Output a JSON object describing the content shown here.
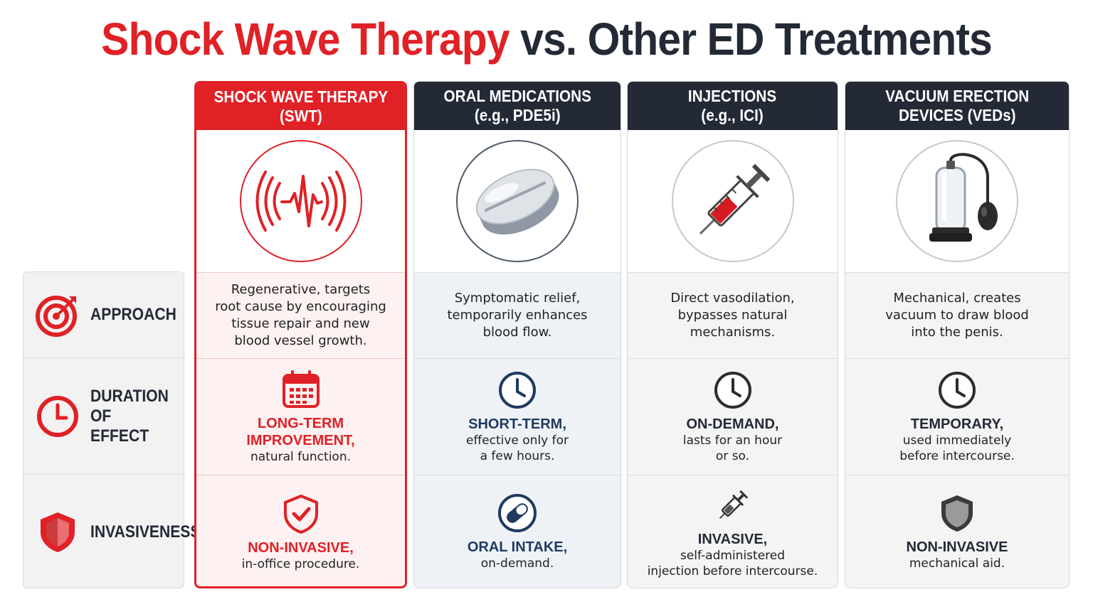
{
  "title": {
    "part1": "Shock Wave Therapy",
    "part2": "vs. Other ED Treatments"
  },
  "colors": {
    "accent_red": "#e02126",
    "dark_navy": "#232a36",
    "oral_blue": "#1f3a5f"
  },
  "rows": [
    {
      "label": "APPROACH",
      "icon": "target-icon"
    },
    {
      "label": "DURATION\nOF EFFECT",
      "icon": "clock-icon"
    },
    {
      "label": "INVASIVENESS",
      "icon": "shield-icon"
    }
  ],
  "columns": [
    {
      "header": "SHOCK WAVE THERAPY\n(SWT)",
      "image_icon": "shockwave-icon",
      "approach": "Regenerative, targets\nroot cause by encouraging\ntissue repair and new\nblood vessel growth.",
      "duration_icon": "calendar-icon",
      "duration_strong": "LONG-TERM\nIMPROVEMENT,",
      "duration_sub": "natural function.",
      "invasive_icon": "shield-check-icon",
      "invasive_strong": "NON-INVASIVE,",
      "invasive_sub": "in-office procedure."
    },
    {
      "header": "ORAL MEDICATIONS\n(e.g., PDE5i)",
      "image_icon": "pill-icon",
      "approach": "Symptomatic relief,\ntemporarily enhances\nblood flow.",
      "duration_icon": "clock-icon",
      "duration_strong": "SHORT-TERM,",
      "duration_sub": "effective only for\na few hours.",
      "invasive_icon": "capsule-icon",
      "invasive_strong": "ORAL INTAKE,",
      "invasive_sub": "on-demand."
    },
    {
      "header": "INJECTIONS\n(e.g., ICI)",
      "image_icon": "syringe-icon",
      "approach": "Direct vasodilation,\nbypasses natural\nmechanisms.",
      "duration_icon": "clock-icon",
      "duration_strong": "ON-DEMAND,",
      "duration_sub": "lasts for an hour\nor so.",
      "invasive_icon": "syringe-icon",
      "invasive_strong": "INVASIVE,",
      "invasive_sub": "self-administered\ninjection before intercourse."
    },
    {
      "header": "VACUUM ERECTION\nDEVICES (VEDs)",
      "image_icon": "vacuum-pump-icon",
      "approach": "Mechanical, creates\nvacuum to draw blood\ninto the penis.",
      "duration_icon": "clock-icon",
      "duration_strong": "TEMPORARY,",
      "duration_sub": "used immediately\nbefore intercourse.",
      "invasive_icon": "shield-icon",
      "invasive_strong": "NON-INVASIVE",
      "invasive_sub": "mechanical aid."
    }
  ]
}
